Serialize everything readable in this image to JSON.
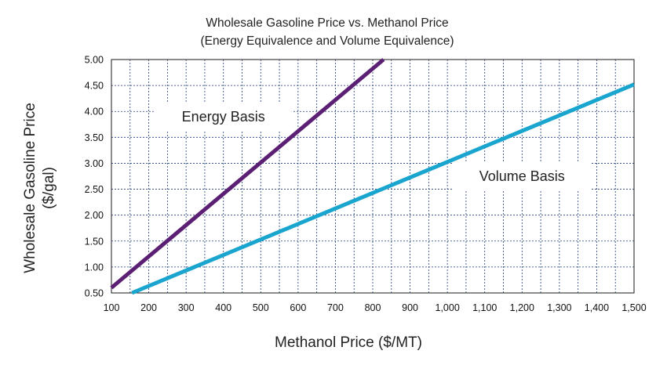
{
  "chart_data": {
    "type": "line",
    "title": "Wholesale Gasoline Price vs. Methanol Price",
    "subtitle": "(Energy Equivalence and Volume Equivalence)",
    "xlabel": "Methanol Price ($/MT)",
    "ylabel_line1": "Wholesale Gasoline Price",
    "ylabel_line2": "($/gal)",
    "xlim": [
      100,
      1500
    ],
    "ylim": [
      0.5,
      5.0
    ],
    "x_ticks": [
      100,
      200,
      300,
      400,
      500,
      600,
      700,
      800,
      900,
      1000,
      1100,
      1200,
      1300,
      1400,
      1500
    ],
    "x_tick_labels": [
      "100",
      "200",
      "300",
      "400",
      "500",
      "600",
      "700",
      "800",
      "900",
      "1,000",
      "1,100",
      "1,200",
      "1,300",
      "1,400",
      "1,500"
    ],
    "y_ticks": [
      0.5,
      1.0,
      1.5,
      2.0,
      2.5,
      3.0,
      3.5,
      4.0,
      4.5,
      5.0
    ],
    "y_tick_labels": [
      "0.50",
      "1.00",
      "1.50",
      "2.00",
      "2.50",
      "3.00",
      "3.50",
      "4.00",
      "4.50",
      "5.00"
    ],
    "grid": true,
    "legend": "none",
    "series": [
      {
        "color": "#5b1f74",
        "x": [
          100,
          829
        ],
        "y": [
          0.6,
          5.0
        ]
      },
      {
        "color": "#1aa5cf",
        "x": [
          155,
          1500
        ],
        "y": [
          0.5,
          4.52
        ]
      }
    ],
    "annotations": [
      {
        "text": "Energy Basis",
        "x": 400,
        "y": 3.9
      },
      {
        "text": "Volume Basis",
        "x": 1200,
        "y": 2.75
      }
    ]
  }
}
